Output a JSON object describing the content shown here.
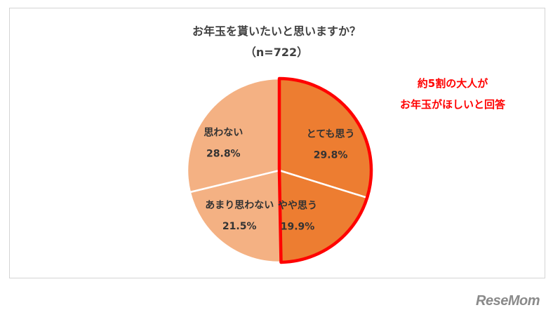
{
  "chart_data": {
    "type": "pie",
    "title": "お年玉を貰いたいと思いますか？",
    "subtitle": "（n=722）",
    "slices": [
      {
        "label": "とても思う",
        "value": 29.8,
        "value_label": "29.8%",
        "color": "#ed7d31"
      },
      {
        "label": "やや思う",
        "value": 19.9,
        "value_label": "19.9%",
        "color": "#ed7d31"
      },
      {
        "label": "あまり思わない",
        "value": 21.5,
        "value_label": "21.5%",
        "color": "#f4b183"
      },
      {
        "label": "思わない",
        "value": 28.8,
        "value_label": "28.8%",
        "color": "#f4b183"
      }
    ],
    "start_angle": "12 o'clock, clockwise",
    "highlight": {
      "slices": [
        "とても思う",
        "やや思う"
      ],
      "outline_color": "#ff0000"
    }
  },
  "annotation": {
    "line1": "約5割の大人が",
    "line2": "お年玉がほしいと回答",
    "color": "#ff0000"
  },
  "logo": {
    "text": "ReseMom"
  }
}
